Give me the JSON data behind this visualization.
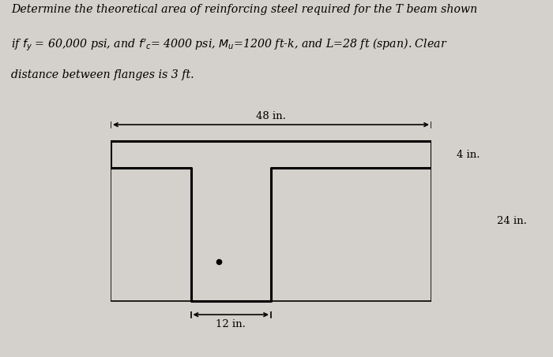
{
  "bg_color": "#d4d0cb",
  "box_facecolor": "#d4d0cb",
  "beam_linewidth": 2.2,
  "dim_linewidth": 1.2,
  "dim_48_label": "48 in.",
  "dim_4_label": "4 in.",
  "dim_24_label": "24 in.",
  "dim_12_label": "12 in.",
  "text_line1": "Determine the theoretical area of reinforcing steel required for the T beam shown",
  "text_line2": "if fy = 60,000 psi, and f′c= 4000 psi, Mu=1200 ft-k, and L=28 ft (span). Clear",
  "text_line3": "distance between flanges is 3 ft.",
  "font_size_text": 10.2,
  "font_size_dim": 9.5
}
